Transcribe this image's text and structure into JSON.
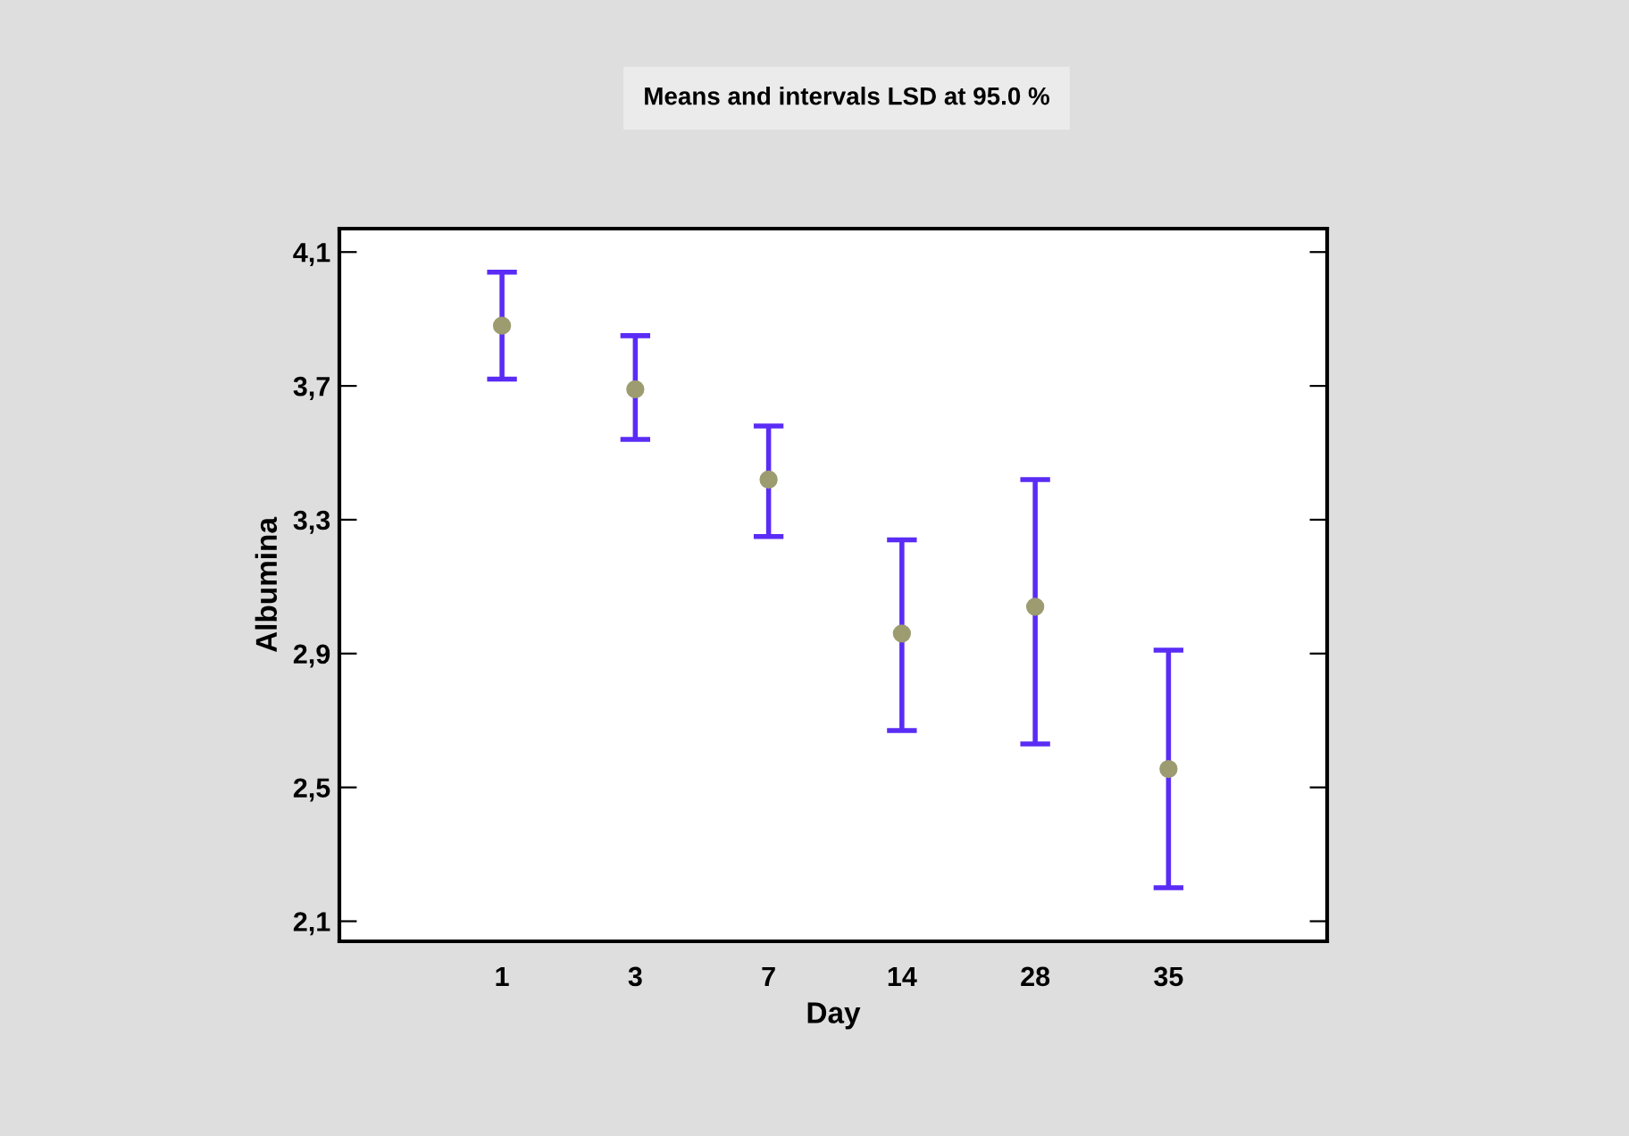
{
  "chart_data": {
    "type": "scatter",
    "title": "Means and intervals LSD at 95.0 %",
    "xlabel": "Day",
    "ylabel": "Albumina",
    "categories": [
      "1",
      "3",
      "7",
      "14",
      "28",
      "35"
    ],
    "series": [
      {
        "color": "#9c9c70",
        "values": [
          3.88,
          3.69,
          3.42,
          2.96,
          3.04,
          2.555
        ],
        "errors": [
          [
            3.72,
            4.04
          ],
          [
            3.54,
            3.85
          ],
          [
            3.25,
            3.58
          ],
          [
            2.67,
            3.24
          ],
          [
            2.63,
            3.42
          ],
          [
            2.2,
            2.91
          ]
        ]
      }
    ],
    "ylim": [
      2.04,
      4.17
    ],
    "yticks": [
      {
        "value": 2.1,
        "label": "2,1"
      },
      {
        "value": 2.5,
        "label": "2,5"
      },
      {
        "value": 2.9,
        "label": "2,9"
      },
      {
        "value": 3.3,
        "label": "3,3"
      },
      {
        "value": 3.7,
        "label": "3,7"
      },
      {
        "value": 4.1,
        "label": "4,1"
      }
    ],
    "marker": "circle",
    "grid": false,
    "legend": false
  }
}
